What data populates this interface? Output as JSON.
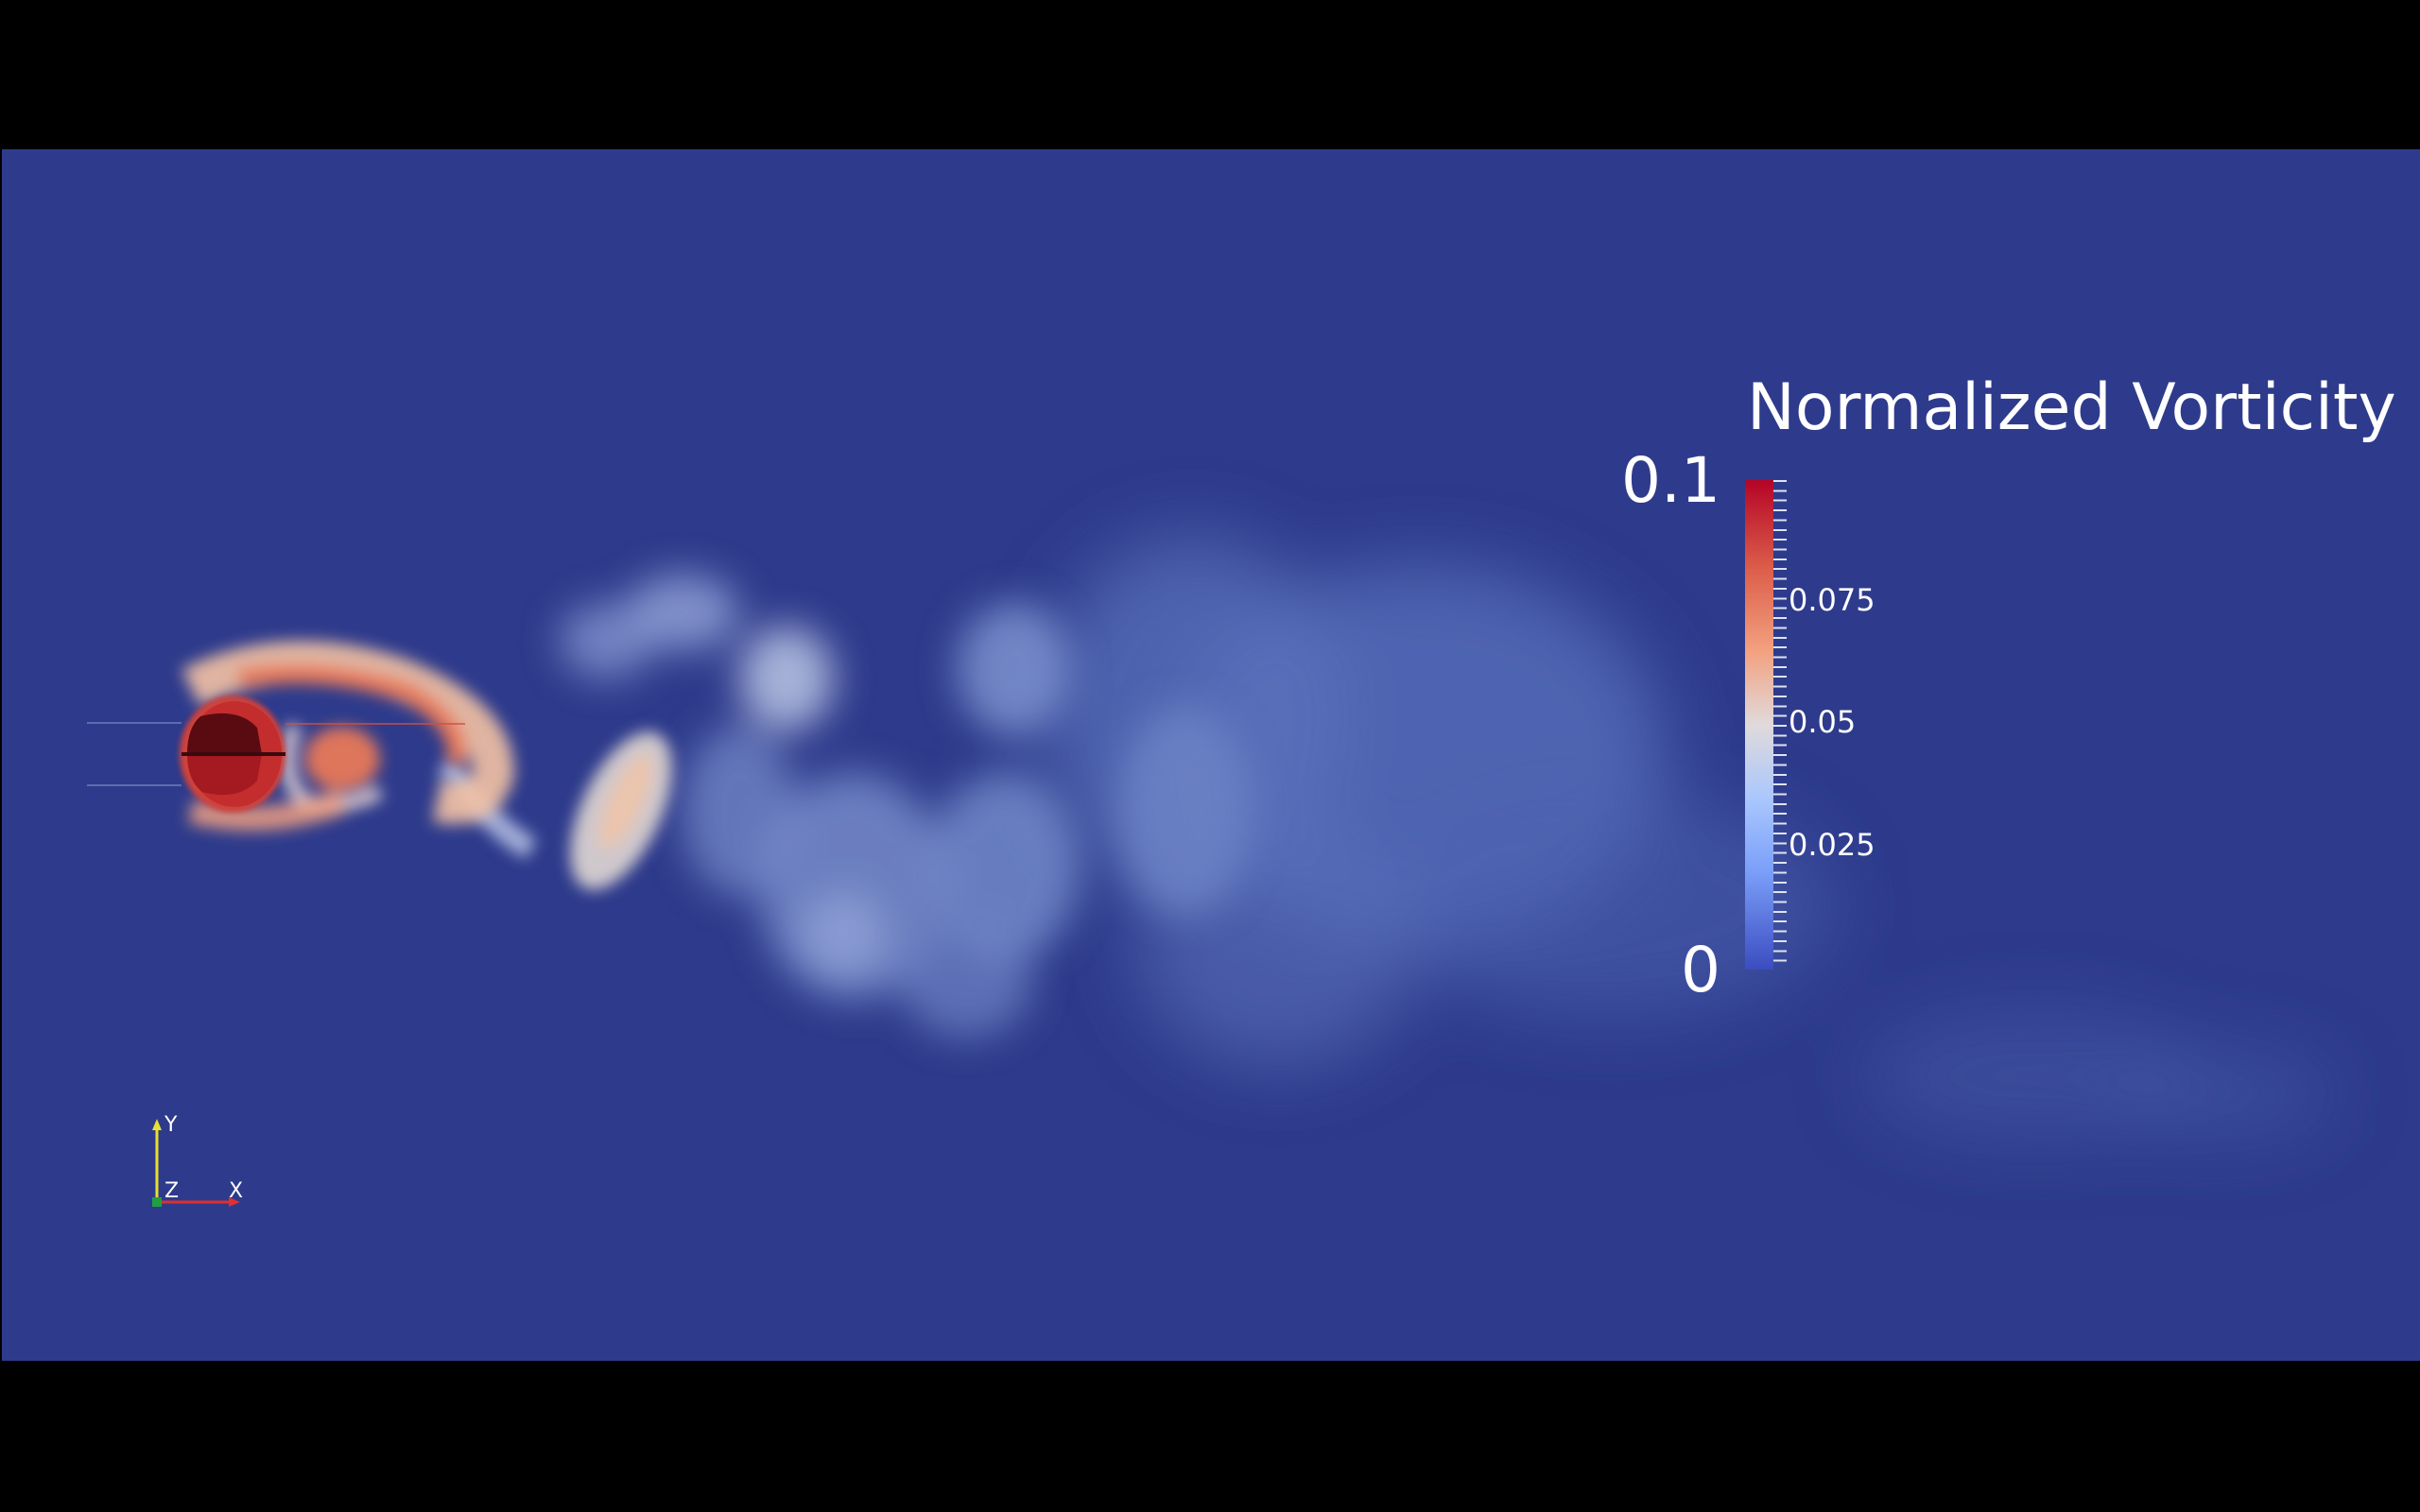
{
  "colorbar": {
    "title": "Normalized Vorticity",
    "max_label": "0.1",
    "min_label": "0",
    "tick_labels": [
      "0.075",
      "0.05",
      "0.025"
    ],
    "range": [
      0,
      0.1
    ],
    "colormap": [
      "#3b4cc0",
      "#7b9ff9",
      "#e0dadb",
      "#f3a180",
      "#b40426"
    ]
  },
  "axes": {
    "x_label": "X",
    "y_label": "Y",
    "z_label": "Z",
    "x_color": "#e03030",
    "y_color": "#e8e030",
    "z_color": "#20a040"
  },
  "background_color": "#2e3b8c"
}
